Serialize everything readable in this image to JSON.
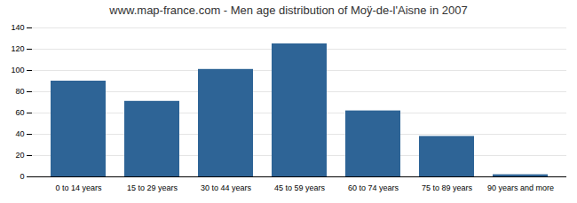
{
  "chart_data": {
    "type": "bar",
    "title": "www.map-france.com - Men age distribution of Moÿ-de-l'Aisne in 2007",
    "categories": [
      "0 to 14 years",
      "15 to 29 years",
      "30 to 44 years",
      "45 to 59 years",
      "60 to 74 years",
      "75 to 89 years",
      "90 years and more"
    ],
    "values": [
      90,
      71,
      101,
      125,
      62,
      38,
      2
    ],
    "color": "#2e6496",
    "ylim": [
      0,
      140
    ],
    "yticks": [
      0,
      20,
      40,
      60,
      80,
      100,
      120,
      140
    ],
    "grid": true
  }
}
